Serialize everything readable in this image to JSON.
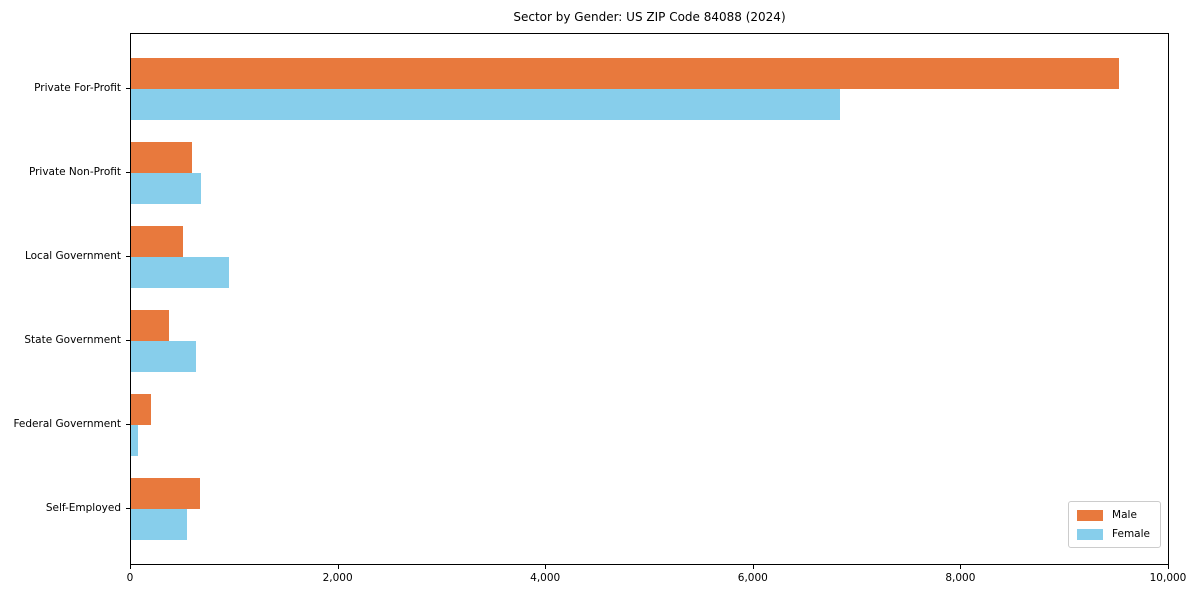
{
  "chart_data": {
    "type": "bar",
    "orientation": "horizontal",
    "title": "Sector by Gender: US ZIP Code 84088 (2024)",
    "categories": [
      "Private For-Profit",
      "Private Non-Profit",
      "Local Government",
      "State Government",
      "Federal Government",
      "Self-Employed"
    ],
    "series": [
      {
        "name": "Male",
        "color": "#e8793d",
        "values": [
          9520,
          590,
          500,
          370,
          190,
          660
        ]
      },
      {
        "name": "Female",
        "color": "#87ceeb",
        "values": [
          6830,
          670,
          940,
          630,
          70,
          540
        ]
      }
    ],
    "xlabel": "",
    "ylabel": "",
    "xlim": [
      0,
      10000
    ],
    "xticks": [
      0,
      2000,
      4000,
      6000,
      8000,
      10000
    ],
    "xtick_labels": [
      "0",
      "2,000",
      "4,000",
      "6,000",
      "8,000",
      "10,000"
    ],
    "grid": false,
    "legend_position": "lower right",
    "axis_color": "#000000",
    "legend_border_color": "#cccccc"
  }
}
